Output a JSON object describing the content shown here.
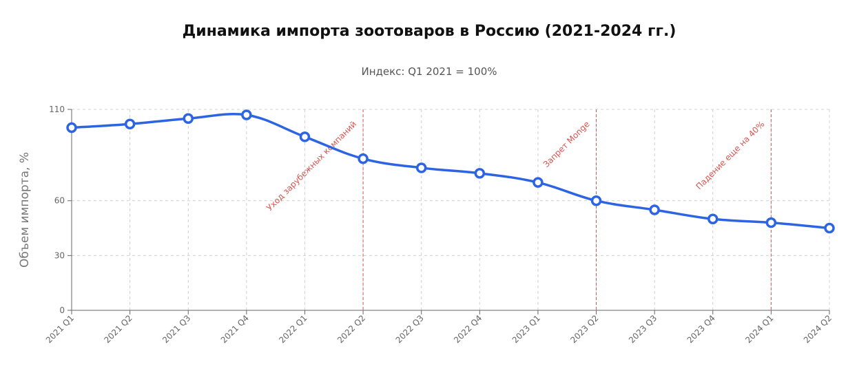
{
  "chart_data": {
    "type": "line",
    "title": "Динамика импорта зоотоваров в Россию (2021-2024 гг.)",
    "subtitle": "Индекс: Q1 2021 = 100%",
    "xlabel": "",
    "ylabel": "Объем импорта, %",
    "categories": [
      "2021 Q1",
      "2021 Q2",
      "2021 Q3",
      "2021 Q4",
      "2022 Q1",
      "2022 Q2",
      "2022 Q3",
      "2022 Q4",
      "2023 Q1",
      "2023 Q2",
      "2023 Q3",
      "2023 Q4",
      "2024 Q1",
      "2024 Q2"
    ],
    "series": [
      {
        "name": "",
        "color": "#2c64e3",
        "values": [
          100,
          102,
          105,
          107,
          95,
          83,
          78,
          75,
          70,
          60,
          55,
          50,
          48,
          45
        ]
      }
    ],
    "ylim": [
      0,
      110
    ],
    "yticks": [
      0,
      30,
      60,
      110
    ],
    "grid": true,
    "annotations": [
      {
        "category": "2022 Q2",
        "text": "Уход зарубежных компаний",
        "color": "#d9534f"
      },
      {
        "category": "2023 Q2",
        "text": "Запрет Monge",
        "color": "#d9534f"
      },
      {
        "category": "2024 Q1",
        "text": "Падение еще на 40%",
        "color": "#d9534f"
      }
    ]
  }
}
